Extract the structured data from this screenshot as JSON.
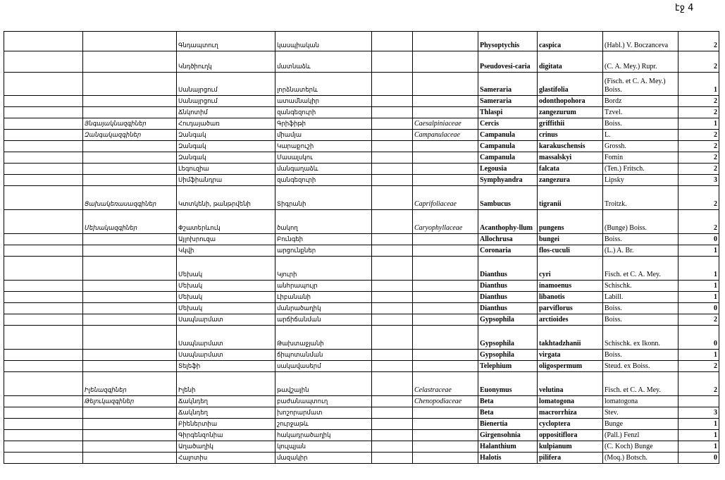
{
  "page_number": "էջ 4",
  "rows": [
    {
      "c1": "",
      "arm_family": "",
      "arm_genus": "Գնդապտուղ",
      "arm_species": "կասպիական",
      "c5": "",
      "lat_family": "",
      "genus": "Physoptychis",
      "species": "caspica",
      "author": "(Habl.) V. Boczanceva",
      "count": "2"
    },
    {
      "c1": "",
      "arm_family": "",
      "arm_genus": "Կնդծիուղկ",
      "arm_species": "մատնաձև",
      "c5": "",
      "lat_family": "",
      "genus": "Pseudovesi-caria",
      "species": "digitata",
      "author": "(C. A. Mey.) Rupr.",
      "count": "2"
    },
    {
      "c1": "",
      "arm_family": "",
      "arm_genus": "Սանայրցում",
      "arm_species": "լորձնատերև",
      "c5": "",
      "lat_family": "",
      "genus": "Sameraria",
      "species": "glastifolia",
      "author": "(Fisch. et C. A. Mey.) Boiss.",
      "count": "1"
    },
    {
      "c1": "",
      "arm_family": "",
      "arm_genus": "Սանայրցում",
      "arm_species": "ատամնակիր",
      "c5": "",
      "lat_family": "",
      "genus": "Sameraria",
      "species": "odonthopohora",
      "author": "Bordz",
      "count": "2"
    },
    {
      "c1": "",
      "arm_family": "",
      "arm_genus": "Ճնկոտիմ",
      "arm_species": "զանգեզուրի",
      "c5": "",
      "lat_family": "",
      "genus": "Thlaspi",
      "species": "zangezurum",
      "author": "Tzvel.",
      "count": "2"
    },
    {
      "c1": "",
      "arm_family": "Յնգայակնազգիներ",
      "arm_genus": "Հուդայածառ",
      "arm_species": "Գրիֆիթի",
      "c5": "",
      "lat_family": "Caesalpiniaceae",
      "genus": "Cercis",
      "species": "griffithii",
      "author": "Boiss.",
      "count": "1"
    },
    {
      "c1": "",
      "arm_family": "Զանգակազգիներ",
      "arm_genus": "Զանգակ",
      "arm_species": "միամյա",
      "c5": "",
      "lat_family": "Campanulaceae",
      "genus": "Campanula",
      "species": "crinus",
      "author": "L.",
      "count": "2"
    },
    {
      "c1": "",
      "arm_family": "",
      "arm_genus": "Զանգակ",
      "arm_species": "Կարաքուշի",
      "c5": "",
      "lat_family": "",
      "genus": "Campanula",
      "species": "karakuschensis",
      "author": "Grossh.",
      "count": "2"
    },
    {
      "c1": "",
      "arm_family": "",
      "arm_genus": "Զանգակ",
      "arm_species": "Մասալսկու",
      "c5": "",
      "lat_family": "",
      "genus": "Campanula",
      "species": "massalskyi",
      "author": "Fomin",
      "count": "2"
    },
    {
      "c1": "",
      "arm_family": "",
      "arm_genus": "Լեգուզիա",
      "arm_species": "մանգաղաձև",
      "c5": "",
      "lat_family": "",
      "genus": "Legousia",
      "species": "falcata",
      "author": "(Ten.) Fritsch.",
      "count": "2"
    },
    {
      "c1": "",
      "arm_family": "",
      "arm_genus": "Սիմֆիանդրա",
      "arm_species": "զանգեզուրի",
      "c5": "",
      "lat_family": "",
      "genus": "Symphyandra",
      "species": "zangezura",
      "author": "Lipsky",
      "count": "3"
    },
    {
      "c1": "",
      "arm_family": "Ցախակեռասազգիներ",
      "arm_genus": "Կտտկենի, թանթրվենի",
      "arm_species": "Տիգրանի",
      "c5": "",
      "lat_family": "Caprifoliaceae",
      "genus": "Sambucus",
      "species": "tigranii",
      "author": "Troitzk.",
      "count": "2"
    },
    {
      "c1": "",
      "arm_family": "Մեխակազգիներ",
      "arm_genus": "Փշատերևուկ",
      "arm_species": "ծակող",
      "c5": "",
      "lat_family": "Caryophyllaceae",
      "genus": "Acanthophy-llum",
      "species": "pungens",
      "author": "(Bunge) Boiss.",
      "count": "2"
    },
    {
      "c1": "",
      "arm_family": "",
      "arm_genus": "Այլոխրուզա",
      "arm_species": "Բունգեի",
      "c5": "",
      "lat_family": "",
      "genus": "Allochrusa",
      "species": "bungei",
      "author": "Boiss.",
      "count": "0"
    },
    {
      "c1": "",
      "arm_family": "",
      "arm_genus": "Կկվի",
      "arm_species": "արցունքներ",
      "c5": "",
      "lat_family": "",
      "genus": "Coronaria",
      "species": "flos-cuculi",
      "author": "(L.) A. Br.",
      "count": "1"
    },
    {
      "c1": "",
      "arm_family": "",
      "arm_genus": "Մեխակ",
      "arm_species": "Կյուրի",
      "c5": "",
      "lat_family": "",
      "genus": "Dianthus",
      "species": "cyri",
      "author": "Fisch. et C. A. Mey.",
      "count": "1"
    },
    {
      "c1": "",
      "arm_family": "",
      "arm_genus": "Մեխակ",
      "arm_species": "անհրապույր",
      "c5": "",
      "lat_family": "",
      "genus": "Dianthus",
      "species": "inamoenus",
      "author": "Schischk.",
      "count": "1"
    },
    {
      "c1": "",
      "arm_family": "",
      "arm_genus": "Մեխակ",
      "arm_species": "Լիբանանի",
      "c5": "",
      "lat_family": "",
      "genus": "Dianthus",
      "species": "libanotis",
      "author": "Labill.",
      "count": "1"
    },
    {
      "c1": "",
      "arm_family": "",
      "arm_genus": "Մեխակ",
      "arm_species": "մանրածաղիկ",
      "c5": "",
      "lat_family": "",
      "genus": "Dianthus",
      "species": "parviflorus",
      "author": "Boiss.",
      "count": "0"
    },
    {
      "c1": "",
      "arm_family": "",
      "arm_genus": "Սապնարմատ",
      "arm_species": "արճիճանման",
      "c5": "",
      "lat_family": "",
      "genus": "Gypsophila",
      "species": "arctioides",
      "author": "Boiss.",
      "count": "2"
    },
    {
      "c1": "",
      "arm_family": "",
      "arm_genus": "Սապնարմատ",
      "arm_species": "Թախտաջյանի",
      "c5": "",
      "lat_family": "",
      "genus": "Gypsophila",
      "species": "takhtadzhanii",
      "author": "Schischk. ex Ikonn.",
      "count": "0"
    },
    {
      "c1": "",
      "arm_family": "",
      "arm_genus": "Սապնարմատ",
      "arm_species": "ճիպոտանման",
      "c5": "",
      "lat_family": "",
      "genus": "Gypsophila",
      "species": "virgata",
      "author": "Boiss.",
      "count": "1"
    },
    {
      "c1": "",
      "arm_family": "",
      "arm_genus": "Տելեֆի",
      "arm_species": "սակավասերմ",
      "c5": "",
      "lat_family": "",
      "genus": "Telephium",
      "species": "oligospermum",
      "author": "Steud. ex Boiss.",
      "count": "2"
    },
    {
      "c1": "",
      "arm_family": "Իլենազգիներ",
      "arm_genus": "Իլենի",
      "arm_species": "թավշային",
      "c5": "",
      "lat_family": "Celastraceae",
      "genus": "Euonymus",
      "species": "velutina",
      "author": "Fisch. et C. A. Mey.",
      "count": "2"
    },
    {
      "c1": "",
      "arm_family": "Թելուկազգիներ",
      "arm_genus": "Ճակնդեղ",
      "arm_species": "բաժանապտուղ",
      "c5": "",
      "lat_family": "Chenopodiaceae",
      "genus": "Beta",
      "species": "lomatogona",
      "author": "lomatogona",
      "count": ""
    },
    {
      "c1": "",
      "arm_family": "",
      "arm_genus": "Ճակնդեղ",
      "arm_species": "խոշորարմատ",
      "c5": "",
      "lat_family": "",
      "genus": "Beta",
      "species": "macrorrhiza",
      "author": "Stev.",
      "count": "3"
    },
    {
      "c1": "",
      "arm_family": "",
      "arm_genus": "Բիեներտիա",
      "arm_species": "շուրջաթև",
      "c5": "",
      "lat_family": "",
      "genus": "Bienertia",
      "species": "cycloptera",
      "author": "Bunge",
      "count": "1"
    },
    {
      "c1": "",
      "arm_family": "",
      "arm_genus": "Գիրգենզոնիա",
      "arm_species": "հակադրածաղիկ",
      "c5": "",
      "lat_family": "",
      "genus": "Girgensohnia",
      "species": "oppositiflora",
      "author": "(Pall.) Fenzl",
      "count": "1"
    },
    {
      "c1": "",
      "arm_family": "",
      "arm_genus": "Աղածաղիկ",
      "arm_species": "կուլպյան",
      "c5": "",
      "lat_family": "",
      "genus": "Halanthium",
      "species": "kulpianum",
      "author": "(C. Koch) Bunge",
      "count": "1"
    },
    {
      "c1": "",
      "arm_family": "",
      "arm_genus": "Հալոտիս",
      "arm_species": "մազակիր",
      "c5": "",
      "lat_family": "",
      "genus": "Halotis",
      "species": "pilifera",
      "author": "(Moq.) Botsch.",
      "count": "0"
    }
  ]
}
